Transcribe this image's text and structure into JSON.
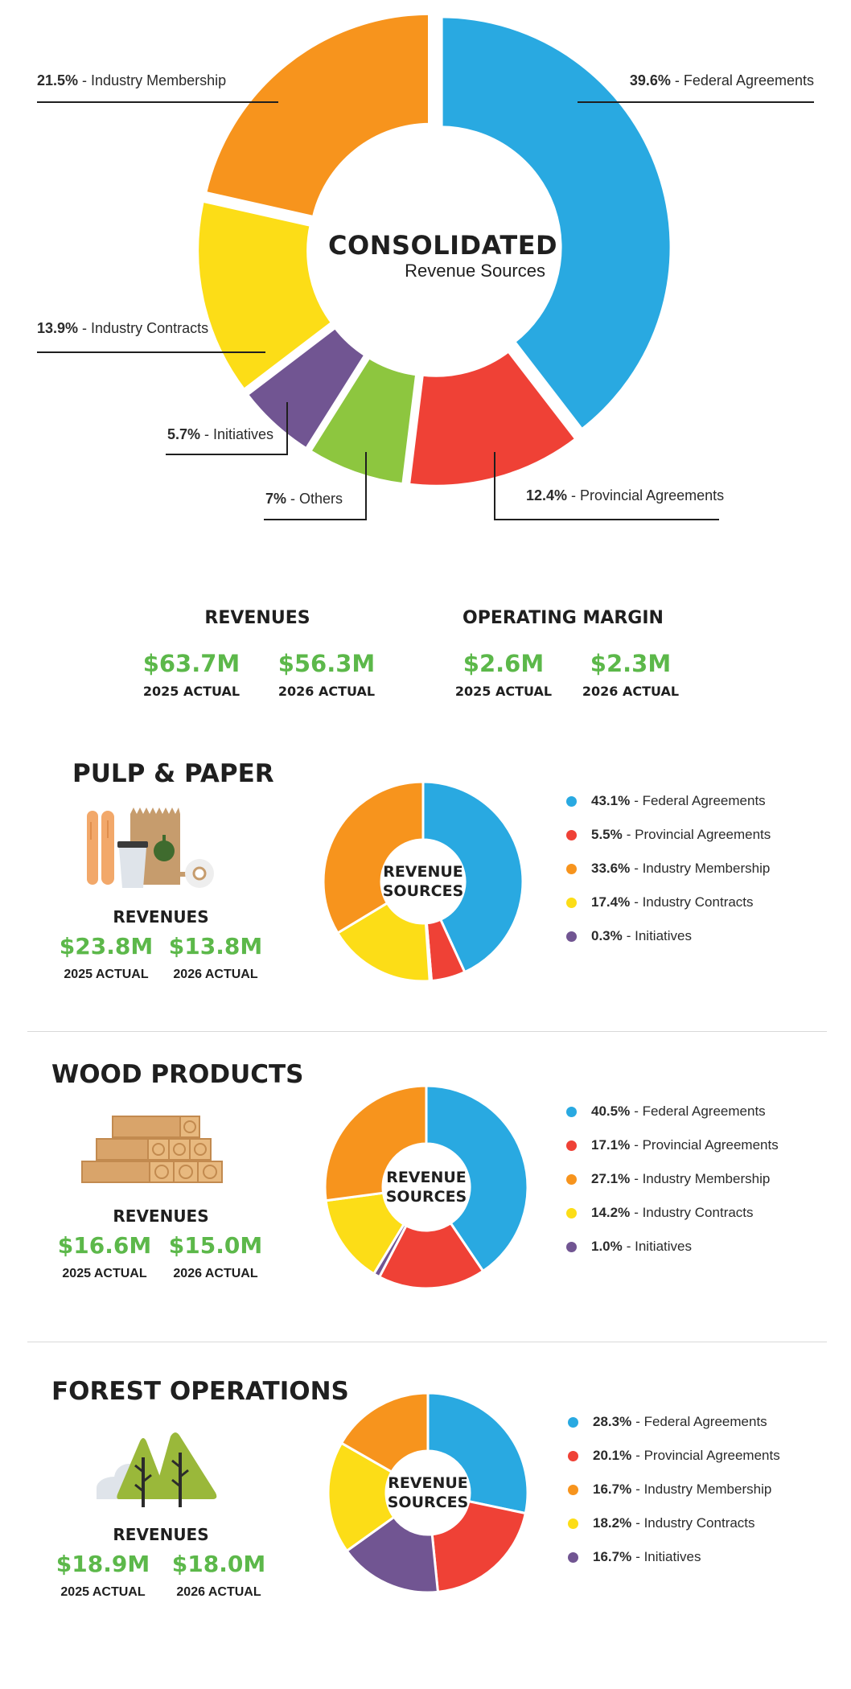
{
  "colors": {
    "federal": "#29a9e1",
    "provincial": "#ef4136",
    "membership": "#f7941d",
    "contracts": "#fcdd17",
    "initiatives": "#715592",
    "others": "#8dc63f",
    "value_green": "#5cb84a"
  },
  "consolidated": {
    "title": "CONSOLIDATED",
    "subtitle": "Revenue Sources",
    "callouts": [
      {
        "pct": "39.6%",
        "label": " - Federal Agreements"
      },
      {
        "pct": "21.5%",
        "label": " - Industry Membership"
      },
      {
        "pct": "13.9%",
        "label": " - Industry Contracts"
      },
      {
        "pct": "5.7%",
        "label": " - Initiatives"
      },
      {
        "pct": "7%",
        "label": " - Others"
      },
      {
        "pct": "12.4%",
        "label": " - Provincial Agreements"
      }
    ]
  },
  "kpis": {
    "revenues": {
      "heading": "REVENUES",
      "v2025": "$63.7M",
      "v2026": "$56.3M",
      "l2025": "2025 ACTUAL",
      "l2026": "2026 ACTUAL"
    },
    "margin": {
      "heading": "OPERATING MARGIN",
      "v2025": "$2.6M",
      "v2026": "$2.3M",
      "l2025": "2025 ACTUAL",
      "l2026": "2026 ACTUAL"
    }
  },
  "sections": [
    {
      "title": "PULP & PAPER",
      "rev_heading": "REVENUES",
      "v2025": "$23.8M",
      "v2026": "$13.8M",
      "l2025": "2025 ACTUAL",
      "l2026": "2026 ACTUAL",
      "center_line1": "REVENUE",
      "center_line2": "SOURCES",
      "legend": [
        {
          "pct": "43.1%",
          "label": "- Federal Agreements"
        },
        {
          "pct": "5.5%",
          "label": "- Provincial Agreements"
        },
        {
          "pct": "33.6%",
          "label": "- Industry Membership"
        },
        {
          "pct": "17.4%",
          "label": "- Industry Contracts"
        },
        {
          "pct": "0.3%",
          "label": "- Initiatives"
        }
      ]
    },
    {
      "title": "WOOD PRODUCTS",
      "rev_heading": "REVENUES",
      "v2025": "$16.6M",
      "v2026": "$15.0M",
      "l2025": "2025 ACTUAL",
      "l2026": "2026 ACTUAL",
      "center_line1": "REVENUE",
      "center_line2": "SOURCES",
      "legend": [
        {
          "pct": "40.5%",
          "label": "- Federal Agreements"
        },
        {
          "pct": "17.1%",
          "label": "- Provincial Agreements"
        },
        {
          "pct": "27.1%",
          "label": "- Industry Membership"
        },
        {
          "pct": "14.2%",
          "label": "- Industry Contracts"
        },
        {
          "pct": "1.0%",
          "label": "- Initiatives"
        }
      ]
    },
    {
      "title": "FOREST OPERATIONS",
      "rev_heading": "REVENUES",
      "v2025": "$18.9M",
      "v2026": "$18.0M",
      "l2025": "2025 ACTUAL",
      "l2026": "2026 ACTUAL",
      "center_line1": "REVENUE",
      "center_line2": "SOURCES",
      "legend": [
        {
          "pct": "28.3%",
          "label": "- Federal Agreements"
        },
        {
          "pct": "20.1%",
          "label": "- Provincial Agreements"
        },
        {
          "pct": "16.7%",
          "label": "- Industry Membership"
        },
        {
          "pct": "18.2%",
          "label": "- Industry Contracts"
        },
        {
          "pct": "16.7%",
          "label": "- Initiatives"
        }
      ]
    }
  ],
  "chart_data": [
    {
      "type": "pie",
      "title": "CONSOLIDATED Revenue Sources",
      "categories": [
        "Federal Agreements",
        "Provincial Agreements",
        "Others",
        "Initiatives",
        "Industry Contracts",
        "Industry Membership"
      ],
      "values": [
        39.6,
        12.4,
        7,
        5.7,
        13.9,
        21.5
      ],
      "colors": [
        "#29a9e1",
        "#ef4136",
        "#8dc63f",
        "#715592",
        "#fcdd17",
        "#f7941d"
      ]
    },
    {
      "type": "pie",
      "title": "PULP & PAPER",
      "categories": [
        "Federal Agreements",
        "Provincial Agreements",
        "Initiatives",
        "Industry Contracts",
        "Industry Membership"
      ],
      "values": [
        43.1,
        5.5,
        0.3,
        17.4,
        33.6
      ],
      "colors": [
        "#29a9e1",
        "#ef4136",
        "#715592",
        "#fcdd17",
        "#f7941d"
      ]
    },
    {
      "type": "pie",
      "title": "WOOD PRODUCTS",
      "categories": [
        "Federal Agreements",
        "Provincial Agreements",
        "Initiatives",
        "Industry Contracts",
        "Industry Membership"
      ],
      "values": [
        40.5,
        17.1,
        1.0,
        14.2,
        27.1
      ],
      "colors": [
        "#29a9e1",
        "#ef4136",
        "#715592",
        "#fcdd17",
        "#f7941d"
      ]
    },
    {
      "type": "pie",
      "title": "FOREST OPERATIONS",
      "categories": [
        "Federal Agreements",
        "Provincial Agreements",
        "Initiatives",
        "Industry Contracts",
        "Industry Membership"
      ],
      "values": [
        28.3,
        20.1,
        16.7,
        18.2,
        16.7
      ],
      "colors": [
        "#29a9e1",
        "#ef4136",
        "#715592",
        "#fcdd17",
        "#f7941d"
      ]
    }
  ]
}
